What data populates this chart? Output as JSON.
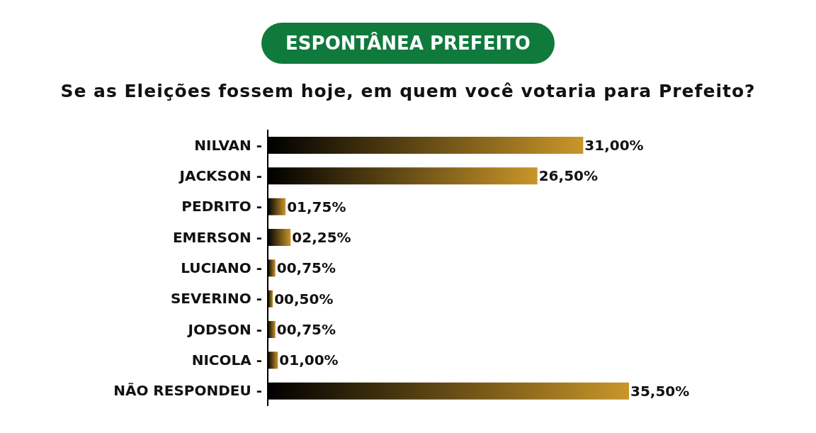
{
  "chart_data": {
    "type": "bar",
    "orientation": "horizontal",
    "title": "ESPONTÂNEA PREFEITO",
    "subtitle": "Se as Eleições fossem hoje, em quem você votaria para Prefeito?",
    "categories": [
      "NILVAN -",
      "JACKSON -",
      "PEDRITO -",
      "EMERSON -",
      "LUCIANO -",
      "SEVERINO -",
      "JODSON -",
      "NICOLA -",
      "NÃO RESPONDEU -"
    ],
    "values": [
      31,
      26.5,
      1.75,
      2.25,
      0.75,
      0.5,
      0.75,
      1,
      35.5
    ],
    "value_labels": [
      "31,00%",
      "26,50%",
      "01,75%",
      "02,25%",
      "00,75%",
      "00,50%",
      "00,75%",
      "01,00%",
      "35,50%"
    ],
    "color": "#c9962a",
    "grid": false,
    "legend": false
  }
}
